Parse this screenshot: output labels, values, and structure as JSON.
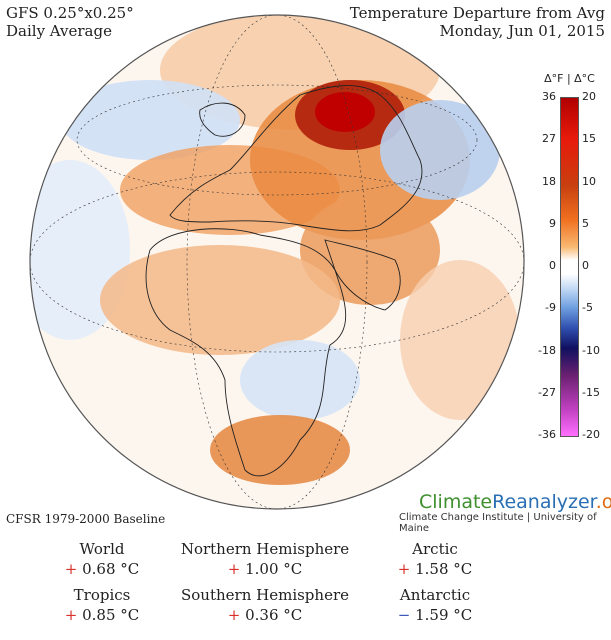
{
  "header": {
    "model": "GFS 0.25°x0.25°",
    "period": "Daily Average",
    "title": "Temperature Departure from Avg",
    "date": "Monday, Jun 01, 2015"
  },
  "baseline": "CFSR 1979-2000 Baseline",
  "brand": {
    "logo_a": "Climate",
    "logo_b": "Reanalyzer",
    "logo_c": ".org",
    "institution": "Climate Change Institute | University of Maine"
  },
  "scale": {
    "header": "Δ°F | Δ°C",
    "f_ticks": [
      "36",
      "27",
      "18",
      "9",
      "0",
      "-9",
      "-18",
      "-27",
      "-36"
    ],
    "c_ticks": [
      "20",
      "15",
      "10",
      "5",
      "0",
      "-5",
      "-10",
      "-15",
      "-20"
    ]
  },
  "stats": [
    {
      "name": "World",
      "sign": "+",
      "value": "0.68 °C"
    },
    {
      "name": "Northern Hemisphere",
      "sign": "+",
      "value": "1.00 °C"
    },
    {
      "name": "Arctic",
      "sign": "+",
      "value": "1.58 °C"
    },
    {
      "name": "Tropics",
      "sign": "+",
      "value": "0.85 °C"
    },
    {
      "name": "Southern Hemisphere",
      "sign": "+",
      "value": "0.36 °C"
    },
    {
      "name": "Antarctic",
      "sign": "−",
      "value": "1.59 °C"
    }
  ],
  "colors": {
    "hot_extreme": "#b00000",
    "warm": "#f07020",
    "neutral": "#ffffff",
    "cool": "#6fa0e0",
    "cold_extreme": "#ff70ff"
  }
}
